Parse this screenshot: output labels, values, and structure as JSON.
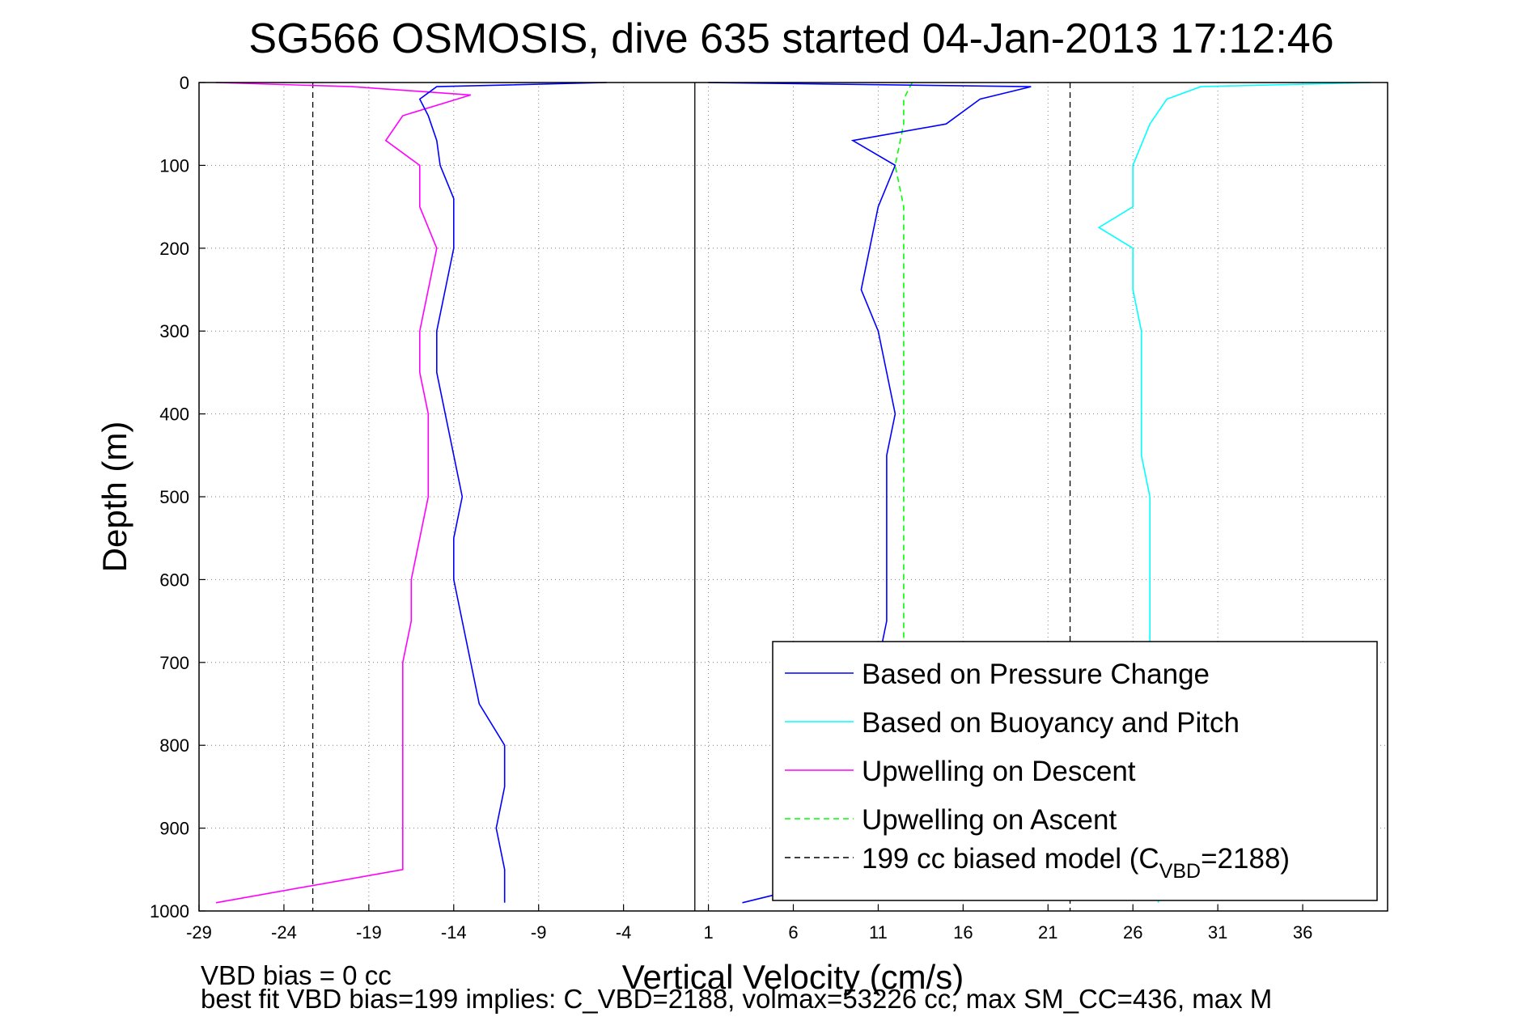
{
  "chart_data": {
    "type": "line",
    "title": "SG566 OSMOSIS, dive 635 started 04-Jan-2013 17:12:46",
    "xlabel": "Vertical Velocity (cm/s)",
    "ylabel": "Depth (m)",
    "xlim": [
      -29,
      41
    ],
    "ylim": [
      1000,
      0
    ],
    "y_reversed": true,
    "grid": true,
    "x_ticks": [
      -29,
      -24,
      -19,
      -14,
      -9,
      -4,
      1,
      6,
      11,
      16,
      21,
      26,
      31,
      36
    ],
    "y_ticks": [
      0,
      100,
      200,
      300,
      400,
      500,
      600,
      700,
      800,
      900,
      1000
    ],
    "x_tick_labels": [
      "-29",
      "-24",
      "-19",
      "-14",
      "-9",
      "-4",
      "1",
      "6",
      "11",
      "16",
      "21",
      "26",
      "31",
      "36"
    ],
    "y_tick_labels": [
      "0",
      "100",
      "200",
      "300",
      "400",
      "500",
      "600",
      "700",
      "800",
      "900",
      "1000"
    ],
    "legend_position": "bottom-right",
    "reference_lines": [
      {
        "x": 0.2,
        "style": "solid",
        "color": "#000000"
      },
      {
        "x": -22.3,
        "style": "dashed",
        "color": "#000000"
      },
      {
        "x": 22.3,
        "style": "dashed",
        "color": "#000000"
      }
    ],
    "series": [
      {
        "name": "Based on Pressure Change",
        "color": "#0000ff",
        "style": "solid",
        "descent": {
          "depth": [
            0,
            5,
            20,
            40,
            70,
            100,
            140,
            200,
            250,
            300,
            350,
            400,
            450,
            500,
            550,
            600,
            650,
            700,
            750,
            800,
            850,
            900,
            950,
            990
          ],
          "velocity": [
            -5,
            -15,
            -16,
            -15.5,
            -15,
            -14.8,
            -14,
            -14,
            -14.5,
            -15,
            -15,
            -14.5,
            -14,
            -13.5,
            -14,
            -14,
            -13.5,
            -13,
            -12.5,
            -11,
            -11,
            -11.5,
            -11,
            -11
          ]
        },
        "ascent": {
          "depth": [
            990,
            950,
            900,
            850,
            800,
            750,
            700,
            650,
            600,
            550,
            500,
            450,
            400,
            350,
            300,
            250,
            200,
            150,
            100,
            70,
            50,
            20,
            5,
            0
          ],
          "velocity": [
            3,
            11,
            11,
            11,
            11,
            11,
            11,
            11.5,
            11.5,
            11.5,
            11.5,
            11.5,
            12,
            11.5,
            11,
            10,
            10.5,
            11,
            12,
            9.5,
            15,
            17,
            20,
            1
          ]
        }
      },
      {
        "name": "Based on Buoyancy and Pitch",
        "color": "#00ffff",
        "style": "solid",
        "descent": {
          "depth": [],
          "velocity": []
        },
        "ascent": {
          "depth": [
            990,
            950,
            900,
            850,
            800,
            750,
            700,
            650,
            600,
            550,
            500,
            450,
            400,
            350,
            300,
            250,
            200,
            175,
            150,
            100,
            50,
            20,
            5,
            0
          ],
          "velocity": [
            27.5,
            27.5,
            27.5,
            27,
            27,
            27,
            27,
            27,
            27,
            27,
            27,
            26.5,
            26.5,
            26.5,
            26.5,
            26,
            26,
            24,
            26,
            26,
            27,
            28,
            30,
            40
          ]
        }
      },
      {
        "name": "Upwelling on Descent",
        "color": "#ff00ff",
        "style": "solid",
        "depth": [
          0,
          5,
          15,
          40,
          70,
          100,
          150,
          200,
          250,
          300,
          350,
          400,
          450,
          500,
          550,
          600,
          650,
          700,
          750,
          800,
          850,
          900,
          950,
          990
        ],
        "velocity": [
          -28,
          -20,
          -13,
          -17,
          -18,
          -16,
          -16,
          -15,
          -15.5,
          -16,
          -16,
          -15.5,
          -15.5,
          -15.5,
          -16,
          -16.5,
          -16.5,
          -17,
          -17,
          -17,
          -17,
          -17,
          -17,
          -28
        ]
      },
      {
        "name": "Upwelling on Ascent",
        "color": "#00ff00",
        "style": "dashed",
        "depth": [
          0,
          20,
          50,
          100,
          150,
          200,
          250,
          300,
          350,
          400,
          450,
          500,
          550,
          600,
          650,
          700,
          750,
          800,
          850,
          900,
          950,
          990
        ],
        "velocity": [
          13,
          12.5,
          12.5,
          12,
          12.5,
          12.5,
          12.5,
          12.5,
          12.5,
          12.5,
          12.5,
          12.5,
          12.5,
          12.5,
          12.5,
          12.5,
          12.5,
          12.5,
          12.5,
          12.5,
          12.5,
          12.5
        ]
      },
      {
        "name": "199 cc biased model (C",
        "name_subscript": "VBD",
        "name_suffix": "=2188)",
        "color": "#000000",
        "style": "dashed"
      }
    ],
    "annotations": [
      "VBD bias = 0 cc",
      "best fit VBD bias=199 implies: C_VBD=2188, volmax=53226 cc, max SM_CC=436, max M"
    ]
  }
}
